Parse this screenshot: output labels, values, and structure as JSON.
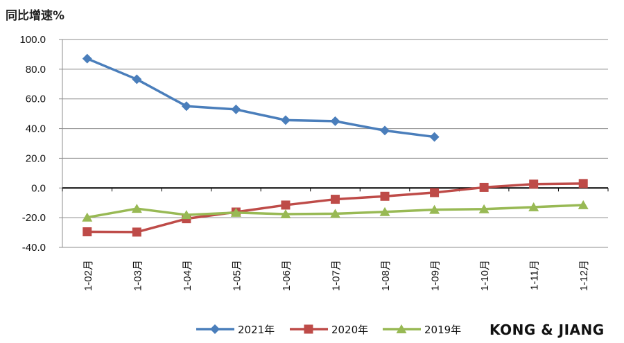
{
  "chart_data": {
    "type": "line",
    "ylabel": "同比增速%",
    "xlabel": "",
    "categories": [
      "1-02月",
      "1-03月",
      "1-04月",
      "1-05月",
      "1-06月",
      "1-07月",
      "1-08月",
      "1-09月",
      "1-10月",
      "1-11月",
      "1-12月"
    ],
    "ylim": [
      -40,
      100
    ],
    "yticks": [
      "100.0",
      "80.0",
      "60.0",
      "40.0",
      "20.0",
      "0.0",
      "-20.0",
      "-40.0"
    ],
    "grid": true,
    "legend_position": "bottom",
    "series": [
      {
        "name": "2021年",
        "color": "#4a7ebb",
        "marker": "diamond",
        "values": [
          87.1,
          73.2,
          55.1,
          52.9,
          45.7,
          45.0,
          38.7,
          34.4,
          null,
          null,
          null
        ]
      },
      {
        "name": "2020年",
        "color": "#be4b48",
        "marker": "square",
        "values": [
          -29.5,
          -29.7,
          -20.7,
          -16.2,
          -11.5,
          -7.6,
          -5.6,
          -3.1,
          0.4,
          2.6,
          3.0
        ]
      },
      {
        "name": "2019年",
        "color": "#98b954",
        "marker": "triangle",
        "values": [
          -19.8,
          -13.9,
          -18.1,
          -16.6,
          -17.6,
          -17.3,
          -16.1,
          -14.6,
          -14.2,
          -12.9,
          -11.5
        ]
      }
    ]
  },
  "watermark": "KONG & JIANG"
}
